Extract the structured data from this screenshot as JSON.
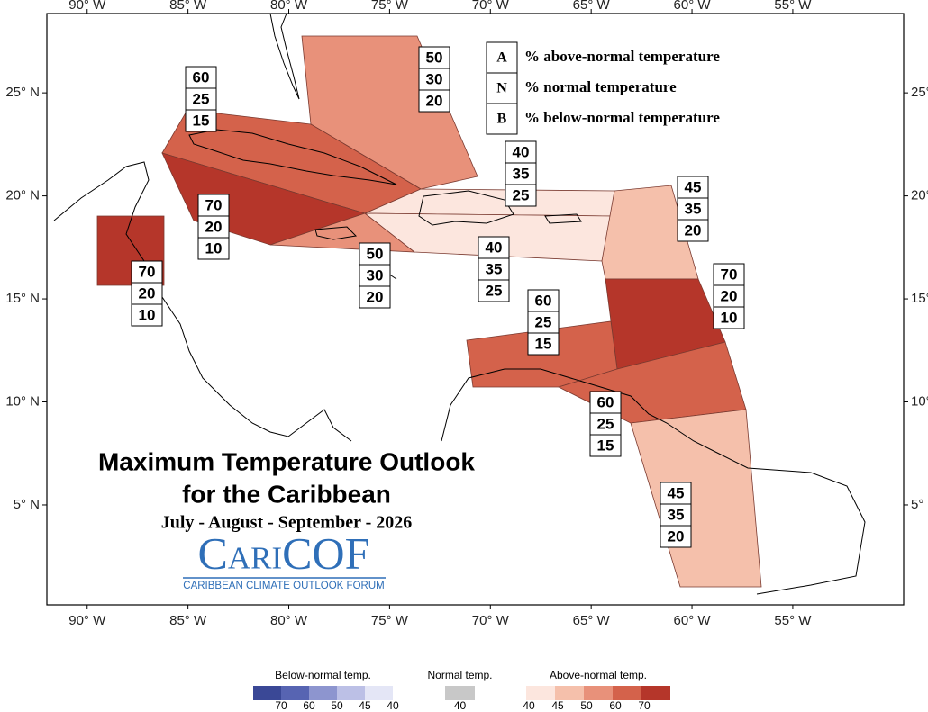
{
  "map": {
    "lonlim": [
      -92,
      -49.5
    ],
    "latlim": [
      0.15,
      28.85
    ],
    "lon_ticks": [
      {
        "value": -90,
        "label": "90° W"
      },
      {
        "value": -85,
        "label": "85° W"
      },
      {
        "value": -80,
        "label": "80° W"
      },
      {
        "value": -75,
        "label": "75° W"
      },
      {
        "value": -70,
        "label": "70° W"
      },
      {
        "value": -65,
        "label": "65° W"
      },
      {
        "value": -60,
        "label": "60° W"
      },
      {
        "value": -55,
        "label": "55° W"
      }
    ],
    "lat_ticks": [
      {
        "value": 25,
        "label": "25° N"
      },
      {
        "value": 20,
        "label": "20° N"
      },
      {
        "value": 15,
        "label": "15° N"
      },
      {
        "value": 10,
        "label": "10° N"
      },
      {
        "value": 5,
        "label": "5° N"
      }
    ]
  },
  "key": {
    "rows": [
      {
        "letter": "A",
        "text": "% above-normal temperature"
      },
      {
        "letter": "N",
        "text": "% normal temperature"
      },
      {
        "letter": "B",
        "text": "% below-normal temperature"
      }
    ]
  },
  "regions": [
    {
      "above": 50,
      "normal": 30,
      "below": 20
    },
    {
      "above": 60,
      "normal": 25,
      "below": 15
    },
    {
      "above": 70,
      "normal": 20,
      "below": 10
    },
    {
      "above": 50,
      "normal": 30,
      "below": 20
    },
    {
      "above": 40,
      "normal": 35,
      "below": 25
    },
    {
      "above": 40,
      "normal": 35,
      "below": 25
    },
    {
      "above": 70,
      "normal": 20,
      "below": 10
    },
    {
      "above": 45,
      "normal": 35,
      "below": 20
    },
    {
      "above": 70,
      "normal": 20,
      "below": 10
    },
    {
      "above": 60,
      "normal": 25,
      "below": 15
    },
    {
      "above": 60,
      "normal": 25,
      "below": 15
    },
    {
      "above": 45,
      "normal": 35,
      "below": 20
    }
  ],
  "title": {
    "line1": "Maximum Temperature Outlook",
    "line2": "for the Caribbean",
    "period": "July - August - September - 2026"
  },
  "logo": {
    "name": "CariCOF",
    "tagline": "CARIBBEAN CLIMATE OUTLOOK FORUM"
  },
  "color_scale": {
    "below": {
      "label": "Below-normal temp.",
      "ticks": [
        70,
        60,
        50,
        45,
        40
      ],
      "colors": [
        "#3a4896",
        "#5764b2",
        "#8d95cf",
        "#bcc0e6",
        "#e4e6f6"
      ]
    },
    "normal": {
      "label": "Normal temp.",
      "ticks": [
        40
      ],
      "colors": [
        "#c8c8c8"
      ]
    },
    "above": {
      "label": "Above-normal temp.",
      "ticks": [
        40,
        45,
        50,
        60,
        70
      ],
      "colors": [
        "#fce6de",
        "#f5c0ab",
        "#e8917a",
        "#d4624b",
        "#b5362a"
      ]
    }
  }
}
